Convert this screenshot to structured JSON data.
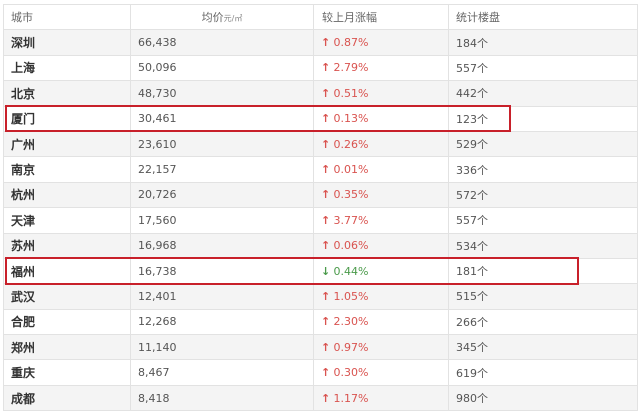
{
  "table": {
    "headers": {
      "city": "城市",
      "price": "均价",
      "price_unit": "元/㎡",
      "change": "较上月涨幅",
      "count": "统计楼盘"
    },
    "rows": [
      {
        "city": "深圳",
        "price": "66,438",
        "dir": "↑",
        "change": "0.87%",
        "count": "184个",
        "trend": "up"
      },
      {
        "city": "上海",
        "price": "50,096",
        "dir": "↑",
        "change": "2.79%",
        "count": "557个",
        "trend": "up"
      },
      {
        "city": "北京",
        "price": "48,730",
        "dir": "↑",
        "change": "0.51%",
        "count": "442个",
        "trend": "up"
      },
      {
        "city": "厦门",
        "price": "30,461",
        "dir": "↑",
        "change": "0.13%",
        "count": "123个",
        "trend": "up"
      },
      {
        "city": "广州",
        "price": "23,610",
        "dir": "↑",
        "change": "0.26%",
        "count": "529个",
        "trend": "up"
      },
      {
        "city": "南京",
        "price": "22,157",
        "dir": "↑",
        "change": "0.01%",
        "count": "336个",
        "trend": "up"
      },
      {
        "city": "杭州",
        "price": "20,726",
        "dir": "↑",
        "change": "0.35%",
        "count": "572个",
        "trend": "up"
      },
      {
        "city": "天津",
        "price": "17,560",
        "dir": "↑",
        "change": "3.77%",
        "count": "557个",
        "trend": "up"
      },
      {
        "city": "苏州",
        "price": "16,968",
        "dir": "↑",
        "change": "0.06%",
        "count": "534个",
        "trend": "up"
      },
      {
        "city": "福州",
        "price": "16,738",
        "dir": "↓",
        "change": "0.44%",
        "count": "181个",
        "trend": "down"
      },
      {
        "city": "武汉",
        "price": "12,401",
        "dir": "↑",
        "change": "1.05%",
        "count": "515个",
        "trend": "up"
      },
      {
        "city": "合肥",
        "price": "12,268",
        "dir": "↑",
        "change": "2.30%",
        "count": "266个",
        "trend": "up"
      },
      {
        "city": "郑州",
        "price": "11,140",
        "dir": "↑",
        "change": "0.97%",
        "count": "345个",
        "trend": "up"
      },
      {
        "city": "重庆",
        "price": "8,467",
        "dir": "↑",
        "change": "0.30%",
        "count": "619个",
        "trend": "up"
      },
      {
        "city": "成都",
        "price": "8,418",
        "dir": "↑",
        "change": "1.17%",
        "count": "980个",
        "trend": "up"
      }
    ]
  },
  "highlights": {
    "rows": [
      "厦门",
      "福州"
    ],
    "color": "#c8202a"
  },
  "colors": {
    "up": "#d9534f",
    "down": "#4a9a4a"
  }
}
